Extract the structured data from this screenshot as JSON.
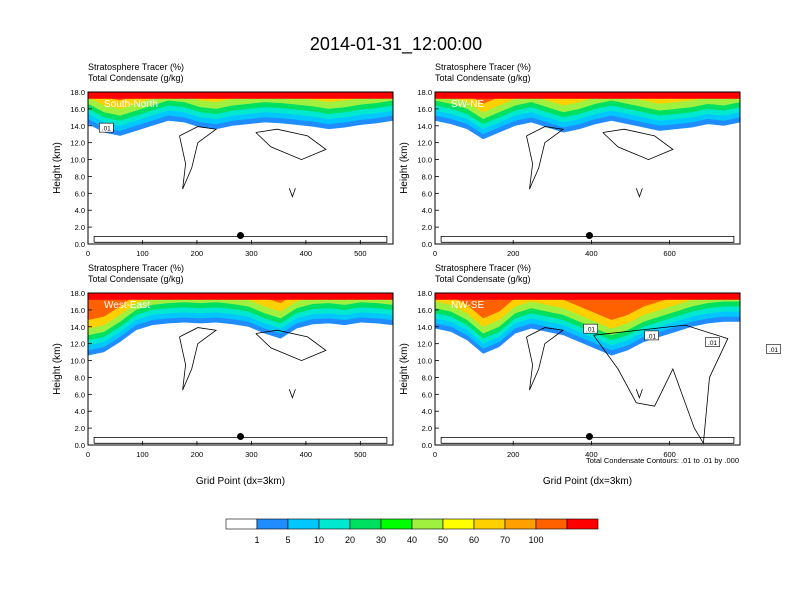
{
  "title": "2014-01-31_12:00:00",
  "colors": {
    "levels": [
      "#ffffff",
      "#1f8cff",
      "#00c8ff",
      "#00e8d0",
      "#00e060",
      "#00ff00",
      "#a0f040",
      "#ffff00",
      "#ffd000",
      "#ffa000",
      "#ff6000",
      "#ff0000"
    ],
    "contour": "#000000",
    "marker": "#000000"
  },
  "colorbar": {
    "labels": [
      "1",
      "5",
      "10",
      "20",
      "30",
      "40",
      "50",
      "60",
      "70",
      "100"
    ]
  },
  "footnote": "Total Condensate Contours: .01 to .01 by .000",
  "chart_data": [
    {
      "type": "heatmap",
      "panel_label": "South-North",
      "header_line1": "Stratosphere Tracer   (%)",
      "header_line2": "Total Condensate   (g/kg)",
      "xlabel": "",
      "ylabel": "Height (km)",
      "xlim": [
        0,
        560
      ],
      "ylim": [
        0,
        18
      ],
      "x_ticks": [
        "0",
        "100",
        "200",
        "300",
        "400",
        "500"
      ],
      "y_ticks": [
        "0.0",
        "2.0",
        "4.0",
        "6.0",
        "8.0",
        "10.0",
        "12.0",
        "14.0",
        "16.0",
        "18.0"
      ],
      "marker_x": 280,
      "marker_y": 1.0,
      "contour_labels": [
        ".01"
      ],
      "tracer_base_km": [
        14.2,
        13.2,
        12.8,
        13.4,
        14.0,
        14.6,
        14.4,
        13.8,
        13.6,
        14.0,
        14.2,
        14.4,
        14.3,
        14.1,
        13.9,
        13.6,
        13.8,
        14.1,
        14.3,
        14.6
      ]
    },
    {
      "type": "heatmap",
      "panel_label": "SW-NE",
      "header_line1": "Stratosphere Tracer   (%)",
      "header_line2": "Total Condensate   (g/kg)",
      "xlabel": "",
      "ylabel": "Height (km)",
      "xlim": [
        0,
        780
      ],
      "ylim": [
        0,
        18
      ],
      "x_ticks": [
        "0",
        "200",
        "400",
        "600"
      ],
      "y_ticks": [
        "0.0",
        "2.0",
        "4.0",
        "6.0",
        "8.0",
        "10.0",
        "12.0",
        "14.0",
        "16.0",
        "18.0"
      ],
      "marker_x": 395,
      "marker_y": 1.0,
      "contour_labels": [],
      "tracer_base_km": [
        14.6,
        14.2,
        13.6,
        12.4,
        13.2,
        14.0,
        14.4,
        13.8,
        13.2,
        13.6,
        14.2,
        14.6,
        14.2,
        13.8,
        13.4,
        13.6,
        13.8,
        14.2,
        14.0,
        14.4
      ]
    },
    {
      "type": "heatmap",
      "panel_label": "West-East",
      "header_line1": "Stratosphere Tracer   (%)",
      "header_line2": "Total Condensate   (g/kg)",
      "xlabel": "Grid Point (dx=3km)",
      "ylabel": "Height (km)",
      "xlim": [
        0,
        560
      ],
      "ylim": [
        0,
        18
      ],
      "x_ticks": [
        "0",
        "100",
        "200",
        "300",
        "400",
        "500"
      ],
      "y_ticks": [
        "0.0",
        "2.0",
        "4.0",
        "6.0",
        "8.0",
        "10.0",
        "12.0",
        "14.0",
        "16.0",
        "18.0"
      ],
      "marker_x": 280,
      "marker_y": 1.0,
      "contour_labels": [],
      "tracer_base_km": [
        10.6,
        11.0,
        12.2,
        13.6,
        14.2,
        14.4,
        14.5,
        14.4,
        14.5,
        14.3,
        14.0,
        13.2,
        12.6,
        13.8,
        14.3,
        14.4,
        14.2,
        14.5,
        14.4,
        14.2
      ]
    },
    {
      "type": "heatmap",
      "panel_label": "NW-SE",
      "header_line1": "Stratosphere Tracer   (%)",
      "header_line2": "Total Condensate   (g/kg)",
      "xlabel": "Grid Point (dx=3km)",
      "ylabel": "Height (km)",
      "xlim": [
        0,
        780
      ],
      "ylim": [
        0,
        18
      ],
      "x_ticks": [
        "0",
        "200",
        "400",
        "600"
      ],
      "y_ticks": [
        "0.0",
        "2.0",
        "4.0",
        "6.0",
        "8.0",
        "10.0",
        "12.0",
        "14.0",
        "16.0",
        "18.0"
      ],
      "marker_x": 395,
      "marker_y": 1.0,
      "contour_labels": [
        ".01",
        ".01",
        ".01",
        ".01"
      ],
      "tracer_base_km": [
        13.8,
        13.4,
        12.4,
        10.8,
        11.6,
        13.2,
        13.8,
        13.4,
        13.0,
        12.2,
        11.4,
        10.6,
        11.2,
        12.2,
        12.8,
        13.4,
        14.0,
        14.4,
        14.6,
        14.6
      ]
    }
  ]
}
